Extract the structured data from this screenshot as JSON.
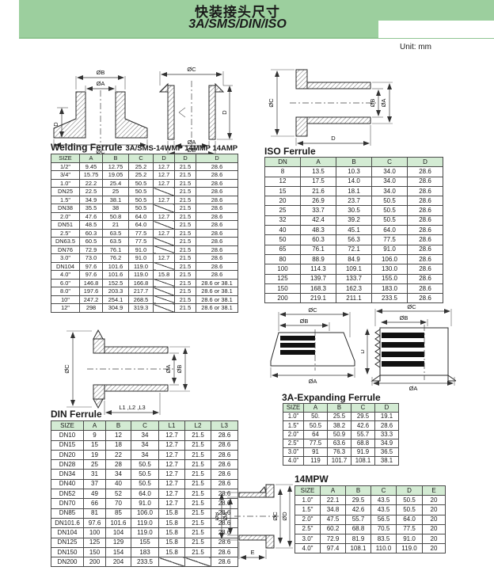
{
  "page": {
    "unit_label": "Unit: mm"
  },
  "banner": {
    "title_cn": "快装接头尺寸",
    "title_en": "3A/SMS/DIN/ISO",
    "bg_color": "#9ccf9e",
    "header_cell_color": "#d3ebd3"
  },
  "diagrams": {
    "welding_front": {
      "dim_top_outer": "ØB",
      "dim_top_inner": "ØA",
      "dim_left": "D",
      "dim_bottom": "ØC"
    },
    "welding_side": {
      "dim_top": "ØC",
      "dim_right": "D",
      "dim_bottom_inner": "ØA",
      "dim_bottom_outer": "ØB"
    },
    "iso_side": {
      "dim_left": "ØC",
      "dim_right_inner": "ØB",
      "dim_right_outer": "ØA",
      "dim_bottom": "D"
    },
    "din_side": {
      "dim_left": "ØC",
      "dim_right_inner": "ØA",
      "dim_right_outer": "ØB",
      "dim_bottom": "L1 ,L2 ,L3"
    },
    "expanding_left": {
      "dim_top_outer": "ØC",
      "dim_top_inner": "ØB",
      "dim_bottom": "ØA"
    },
    "expanding_right": {
      "dim_top_outer": "ØC",
      "dim_top_inner": "ØB",
      "dim_left": "D",
      "dim_bottom": "ØA"
    },
    "mpw": {
      "dim_left_outer": "ØB",
      "dim_left_inner": "ØA",
      "dim_right_inner": "ØC",
      "dim_right_outer": "ØD",
      "dim_bottom": "E"
    }
  },
  "tables": {
    "welding": {
      "title": "Welding Ferrule",
      "subtitle": "3A/SMS-14WMP 14MMP  14AMP",
      "columns": [
        "SIZE",
        "A",
        "B",
        "C",
        "D",
        "D",
        "D"
      ],
      "rows": [
        [
          "1/2\"",
          "9.45",
          "12.75",
          "25.2",
          "12.7",
          "21.5",
          "28.6"
        ],
        [
          "3/4\"",
          "15.75",
          "19.05",
          "25.2",
          "12.7",
          "21.5",
          "28.6"
        ],
        [
          "1.0\"",
          "22.2",
          "25.4",
          "50.5",
          "12.7",
          "21.5",
          "28.6"
        ],
        [
          "DN25",
          "22.5",
          "25",
          "50.5",
          "/",
          "21.5",
          "28.6"
        ],
        [
          "1.5\"",
          "34.9",
          "38.1",
          "50.5",
          "12.7",
          "21.5",
          "28.6"
        ],
        [
          "DN38",
          "35.5",
          "38",
          "50.5",
          "/",
          "21.5",
          "28.6"
        ],
        [
          "2.0\"",
          "47.6",
          "50.8",
          "64.0",
          "12.7",
          "21.5",
          "28.6"
        ],
        [
          "DN51",
          "48.5",
          "21",
          "64.0",
          "/",
          "21.5",
          "28.6"
        ],
        [
          "2.5\"",
          "60.3",
          "63.5",
          "77.5",
          "12.7",
          "21.5",
          "28.6"
        ],
        [
          "DN63.5",
          "60.5",
          "63.5",
          "77.5",
          "/",
          "21.5",
          "28.6"
        ],
        [
          "DN76",
          "72.9",
          "76.1",
          "91.0",
          "/",
          "21.5",
          "28.6"
        ],
        [
          "3.0\"",
          "73.0",
          "76.2",
          "91.0",
          "12.7",
          "21.5",
          "28.6"
        ],
        [
          "DN104",
          "97.6",
          "101.6",
          "119.0",
          "/",
          "21.5",
          "28.6"
        ],
        [
          "4.0\"",
          "97.6",
          "101.6",
          "119.0",
          "15.8",
          "21.5",
          "28.6"
        ],
        [
          "6.0\"",
          "146.8",
          "152.5",
          "166.8",
          "/",
          "21.5",
          "28.6 or 38.1"
        ],
        [
          "8.0\"",
          "197.6",
          "203.3",
          "217.7",
          "/",
          "21.5",
          "28.6 or 38.1"
        ],
        [
          "10\"",
          "247.2",
          "254.1",
          "268.5",
          "/",
          "21.5",
          "28.6 or 38.1"
        ],
        [
          "12\"",
          "298",
          "304.9",
          "319.3",
          "/",
          "21.5",
          "28.6 or 38.1"
        ]
      ]
    },
    "iso": {
      "title": "ISO Ferrule",
      "columns": [
        "DN",
        "A",
        "B",
        "C",
        "D"
      ],
      "rows": [
        [
          "8",
          "13.5",
          "10.3",
          "34.0",
          "28.6"
        ],
        [
          "12",
          "17.5",
          "14.0",
          "34.0",
          "28.6"
        ],
        [
          "15",
          "21.6",
          "18.1",
          "34.0",
          "28.6"
        ],
        [
          "20",
          "26.9",
          "23.7",
          "50.5",
          "28.6"
        ],
        [
          "25",
          "33.7",
          "30.5",
          "50.5",
          "28.6"
        ],
        [
          "32",
          "42.4",
          "39.2",
          "50.5",
          "28.6"
        ],
        [
          "40",
          "48.3",
          "45.1",
          "64.0",
          "28.6"
        ],
        [
          "50",
          "60.3",
          "56.3",
          "77.5",
          "28.6"
        ],
        [
          "65",
          "76.1",
          "72.1",
          "91.0",
          "28.6"
        ],
        [
          "80",
          "88.9",
          "84.9",
          "106.0",
          "28.6"
        ],
        [
          "100",
          "114.3",
          "109.1",
          "130.0",
          "28.6"
        ],
        [
          "125",
          "139.7",
          "133.7",
          "155.0",
          "28.6"
        ],
        [
          "150",
          "168.3",
          "162.3",
          "183.0",
          "28.6"
        ],
        [
          "200",
          "219.1",
          "211.1",
          "233.5",
          "28.6"
        ]
      ]
    },
    "din": {
      "title": "DIN Ferrule",
      "columns": [
        "SIZE",
        "A",
        "B",
        "C",
        "L1",
        "L2",
        "L3"
      ],
      "rows": [
        [
          "DN10",
          "9",
          "12",
          "34",
          "12.7",
          "21.5",
          "28.6"
        ],
        [
          "DN15",
          "15",
          "18",
          "34",
          "12.7",
          "21.5",
          "28.6"
        ],
        [
          "DN20",
          "19",
          "22",
          "34",
          "12.7",
          "21.5",
          "28.6"
        ],
        [
          "DN28",
          "25",
          "28",
          "50.5",
          "12.7",
          "21.5",
          "28.6"
        ],
        [
          "DN34",
          "31",
          "34",
          "50.5",
          "12.7",
          "21.5",
          "28.6"
        ],
        [
          "DN40",
          "37",
          "40",
          "50.5",
          "12.7",
          "21.5",
          "28.6"
        ],
        [
          "DN52",
          "49",
          "52",
          "64.0",
          "12.7",
          "21.5",
          "28.6"
        ],
        [
          "DN70",
          "66",
          "70",
          "91.0",
          "12.7",
          "21.5",
          "28.6"
        ],
        [
          "DN85",
          "81",
          "85",
          "106.0",
          "15.8",
          "21.5",
          "28.6"
        ],
        [
          "DN101.6",
          "97.6",
          "101.6",
          "119.0",
          "15.8",
          "21.5",
          "28.6"
        ],
        [
          "DN104",
          "100",
          "104",
          "119.0",
          "15.8",
          "21.5",
          "28.6"
        ],
        [
          "DN125",
          "125",
          "129",
          "155",
          "15.8",
          "21.5",
          "28.6"
        ],
        [
          "DN150",
          "150",
          "154",
          "183",
          "15.8",
          "21.5",
          "28.6"
        ],
        [
          "DN200",
          "200",
          "204",
          "233.5",
          "/",
          "/",
          "28.6"
        ]
      ]
    },
    "expanding": {
      "title": "3A-Expanding Ferrule",
      "columns": [
        "SIZE",
        "A",
        "B",
        "C",
        "D"
      ],
      "rows": [
        [
          "1.0\"",
          "50.",
          "25.5",
          "29.5",
          "19.1"
        ],
        [
          "1.5\"",
          "50.5",
          "38.2",
          "42.6",
          "28.6"
        ],
        [
          "2.0\"",
          "64",
          "50.9",
          "55.7",
          "33.3"
        ],
        [
          "2.5\"",
          "77.5",
          "63.6",
          "68.8",
          "34.9"
        ],
        [
          "3.0\"",
          "91",
          "76.3",
          "91.9",
          "36.5"
        ],
        [
          "4.0\"",
          "119",
          "101.7",
          "108.1",
          "38.1"
        ]
      ]
    },
    "mpw": {
      "title": "14MPW",
      "columns": [
        "SIZE",
        "A",
        "B",
        "C",
        "D",
        "E"
      ],
      "rows": [
        [
          "1.0\"",
          "22.1",
          "29.5",
          "43.5",
          "50.5",
          "20"
        ],
        [
          "1.5\"",
          "34.8",
          "42.6",
          "43.5",
          "50.5",
          "20"
        ],
        [
          "2.0\"",
          "47.5",
          "55.7",
          "56.5",
          "64.0",
          "20"
        ],
        [
          "2.5\"",
          "60.2",
          "68.8",
          "70.5",
          "77.5",
          "20"
        ],
        [
          "3.0\"",
          "72.9",
          "81.9",
          "83.5",
          "91.0",
          "20"
        ],
        [
          "4.0\"",
          "97.4",
          "108.1",
          "110.0",
          "119.0",
          "20"
        ]
      ]
    }
  }
}
